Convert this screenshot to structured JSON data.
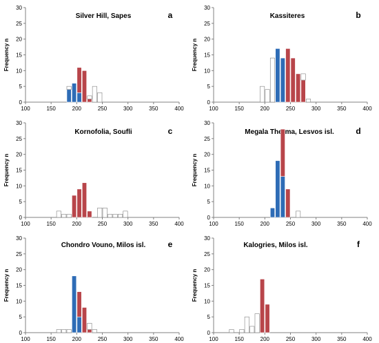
{
  "colors": {
    "blue": "#2e6cb6",
    "red": "#b8454a",
    "white": "#ffffff",
    "outline": "#7f7f7f",
    "axis": "#808080"
  },
  "chart_data": [
    {
      "type": "bar",
      "stacked": true,
      "letter": "a",
      "title": "Silver Hill, Sapes",
      "xlabel": "",
      "ylabel": "Frequency n",
      "xlim": [
        100,
        400
      ],
      "ylim": [
        0,
        30
      ],
      "bin_width": 10,
      "x_ticks": [
        100,
        150,
        200,
        250,
        300,
        350,
        400
      ],
      "y_ticks": [
        0,
        5,
        10,
        15,
        20,
        25,
        30
      ],
      "series_colors": {
        "blue": "#2e6cb6",
        "red": "#b8454a",
        "white": "#ffffff"
      },
      "bins": [
        {
          "x": 180,
          "blue": 4,
          "red": 0,
          "white": 1
        },
        {
          "x": 190,
          "blue": 6,
          "red": 0,
          "white": 0
        },
        {
          "x": 200,
          "blue": 3,
          "red": 8,
          "white": 0
        },
        {
          "x": 210,
          "blue": 0,
          "red": 10,
          "white": 0
        },
        {
          "x": 220,
          "blue": 0,
          "red": 1,
          "white": 1
        },
        {
          "x": 230,
          "blue": 0,
          "red": 0,
          "white": 5
        },
        {
          "x": 240,
          "blue": 0,
          "red": 0,
          "white": 3
        }
      ]
    },
    {
      "type": "bar",
      "stacked": true,
      "letter": "b",
      "title": "Kassiteres",
      "xlabel": "",
      "ylabel": "Frequency n",
      "xlim": [
        100,
        400
      ],
      "ylim": [
        0,
        30
      ],
      "bin_width": 10,
      "x_ticks": [
        100,
        150,
        200,
        250,
        300,
        350,
        400
      ],
      "y_ticks": [
        0,
        5,
        10,
        15,
        20,
        25,
        30
      ],
      "series_colors": {
        "blue": "#2e6cb6",
        "red": "#b8454a",
        "white": "#ffffff"
      },
      "bins": [
        {
          "x": 190,
          "blue": 0,
          "red": 0,
          "white": 5
        },
        {
          "x": 200,
          "blue": 0,
          "red": 0,
          "white": 4
        },
        {
          "x": 210,
          "blue": 0,
          "red": 0,
          "white": 14
        },
        {
          "x": 220,
          "blue": 17,
          "red": 0,
          "white": 0
        },
        {
          "x": 230,
          "blue": 14,
          "red": 0,
          "white": 0
        },
        {
          "x": 240,
          "blue": 0,
          "red": 17,
          "white": 0
        },
        {
          "x": 250,
          "blue": 0,
          "red": 14,
          "white": 0
        },
        {
          "x": 260,
          "blue": 0,
          "red": 9,
          "white": 0
        },
        {
          "x": 270,
          "blue": 0,
          "red": 7,
          "white": 2
        },
        {
          "x": 280,
          "blue": 0,
          "red": 0,
          "white": 1
        }
      ]
    },
    {
      "type": "bar",
      "stacked": true,
      "letter": "c",
      "title": "Kornofolia, Soufli",
      "xlabel": "",
      "ylabel": "Frequency n",
      "xlim": [
        100,
        400
      ],
      "ylim": [
        0,
        30
      ],
      "bin_width": 10,
      "x_ticks": [
        100,
        150,
        200,
        250,
        300,
        350,
        400
      ],
      "y_ticks": [
        0,
        5,
        10,
        15,
        20,
        25,
        30
      ],
      "series_colors": {
        "blue": "#2e6cb6",
        "red": "#b8454a",
        "white": "#ffffff"
      },
      "bins": [
        {
          "x": 160,
          "blue": 0,
          "red": 0,
          "white": 2
        },
        {
          "x": 170,
          "blue": 0,
          "red": 0,
          "white": 1
        },
        {
          "x": 180,
          "blue": 0,
          "red": 0,
          "white": 1
        },
        {
          "x": 190,
          "blue": 0,
          "red": 7,
          "white": 0
        },
        {
          "x": 200,
          "blue": 0,
          "red": 9,
          "white": 0
        },
        {
          "x": 210,
          "blue": 0,
          "red": 11,
          "white": 0
        },
        {
          "x": 220,
          "blue": 0,
          "red": 2,
          "white": 0
        },
        {
          "x": 240,
          "blue": 0,
          "red": 0,
          "white": 3
        },
        {
          "x": 250,
          "blue": 0,
          "red": 0,
          "white": 3
        },
        {
          "x": 260,
          "blue": 0,
          "red": 0,
          "white": 1
        },
        {
          "x": 270,
          "blue": 0,
          "red": 0,
          "white": 1
        },
        {
          "x": 280,
          "blue": 0,
          "red": 0,
          "white": 1
        },
        {
          "x": 290,
          "blue": 0,
          "red": 0,
          "white": 2
        }
      ]
    },
    {
      "type": "bar",
      "stacked": true,
      "letter": "d",
      "title": "Megala Therma, Lesvos isl.",
      "xlabel": "",
      "ylabel": "Frequency n",
      "xlim": [
        100,
        400
      ],
      "ylim": [
        0,
        30
      ],
      "bin_width": 10,
      "x_ticks": [
        100,
        150,
        200,
        250,
        300,
        350,
        400
      ],
      "y_ticks": [
        0,
        5,
        10,
        15,
        20,
        25,
        30
      ],
      "series_colors": {
        "blue": "#2e6cb6",
        "red": "#b8454a",
        "white": "#ffffff"
      },
      "bins": [
        {
          "x": 210,
          "blue": 3,
          "red": 0,
          "white": 0
        },
        {
          "x": 220,
          "blue": 18,
          "red": 0,
          "white": 0
        },
        {
          "x": 230,
          "blue": 13,
          "red": 15,
          "white": 0
        },
        {
          "x": 240,
          "blue": 0,
          "red": 9,
          "white": 0
        },
        {
          "x": 260,
          "blue": 0,
          "red": 0,
          "white": 2
        }
      ]
    },
    {
      "type": "bar",
      "stacked": true,
      "letter": "e",
      "title": "Chondro Vouno, Milos isl.",
      "xlabel": "Th °C",
      "ylabel": "Frequency n",
      "xlim": [
        100,
        400
      ],
      "ylim": [
        0,
        30
      ],
      "bin_width": 10,
      "x_ticks": [
        100,
        150,
        200,
        250,
        300,
        350,
        400
      ],
      "y_ticks": [
        0,
        5,
        10,
        15,
        20,
        25,
        30
      ],
      "series_colors": {
        "blue": "#2e6cb6",
        "red": "#b8454a",
        "white": "#ffffff"
      },
      "bins": [
        {
          "x": 160,
          "blue": 0,
          "red": 0,
          "white": 1
        },
        {
          "x": 170,
          "blue": 0,
          "red": 0,
          "white": 1
        },
        {
          "x": 180,
          "blue": 0,
          "red": 0,
          "white": 1
        },
        {
          "x": 190,
          "blue": 18,
          "red": 0,
          "white": 0
        },
        {
          "x": 200,
          "blue": 5,
          "red": 8,
          "white": 0
        },
        {
          "x": 210,
          "blue": 0,
          "red": 8,
          "white": 0
        },
        {
          "x": 220,
          "blue": 0,
          "red": 1,
          "white": 2
        },
        {
          "x": 230,
          "blue": 0,
          "red": 0,
          "white": 1
        }
      ]
    },
    {
      "type": "bar",
      "stacked": true,
      "letter": "f",
      "title": "Kalogries, Milos isl.",
      "xlabel": "Th °C",
      "ylabel": "Frequency n",
      "xlim": [
        100,
        400
      ],
      "ylim": [
        0,
        30
      ],
      "bin_width": 10,
      "x_ticks": [
        100,
        150,
        200,
        250,
        300,
        350,
        400
      ],
      "y_ticks": [
        0,
        5,
        10,
        15,
        20,
        25,
        30
      ],
      "series_colors": {
        "blue": "#2e6cb6",
        "red": "#b8454a",
        "white": "#ffffff"
      },
      "bins": [
        {
          "x": 130,
          "blue": 0,
          "red": 0,
          "white": 1
        },
        {
          "x": 150,
          "blue": 0,
          "red": 0,
          "white": 1
        },
        {
          "x": 160,
          "blue": 0,
          "red": 0,
          "white": 5
        },
        {
          "x": 170,
          "blue": 0,
          "red": 0,
          "white": 2
        },
        {
          "x": 180,
          "blue": 0,
          "red": 0,
          "white": 6
        },
        {
          "x": 190,
          "blue": 0,
          "red": 17,
          "white": 0
        },
        {
          "x": 200,
          "blue": 0,
          "red": 9,
          "white": 0
        }
      ]
    }
  ]
}
